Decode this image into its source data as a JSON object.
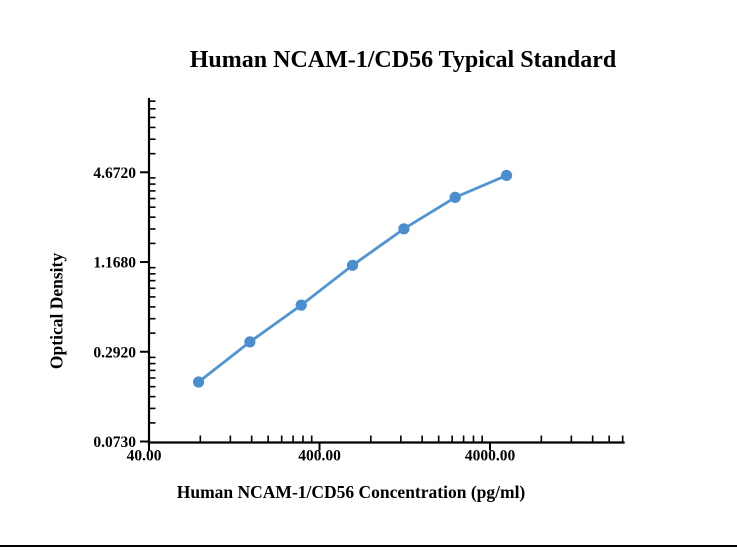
{
  "chart_data": {
    "type": "line",
    "title": "Human NCAM-1/CD56 Typical Standard",
    "xlabel": "Human NCAM-1/CD56 Concentration (pg/ml)",
    "ylabel": "Optical Density",
    "x_scale": "log",
    "y_scale": "log",
    "x": [
      78.125,
      156.25,
      312.5,
      625,
      1250,
      2500,
      5000
    ],
    "y": [
      0.183,
      0.34,
      0.6,
      1.11,
      1.95,
      3.17,
      4.45
    ],
    "x_ticks": [
      {
        "value": 40,
        "label": "40.00"
      },
      {
        "value": 400,
        "label": "400.00"
      },
      {
        "value": 4000,
        "label": "4000.00"
      }
    ],
    "y_ticks": [
      {
        "value": 0.073,
        "label": "0.0730"
      },
      {
        "value": 0.292,
        "label": "0.2920"
      },
      {
        "value": 1.168,
        "label": "1.1680"
      },
      {
        "value": 4.672,
        "label": "4.6720"
      }
    ],
    "xlim": [
      40,
      24000
    ],
    "ylim": [
      0.073,
      14.7
    ],
    "grid": false,
    "legend": "none",
    "line_color": "#5094d4",
    "marker_color": "#4a8ecf",
    "axis_color": "#000000"
  }
}
